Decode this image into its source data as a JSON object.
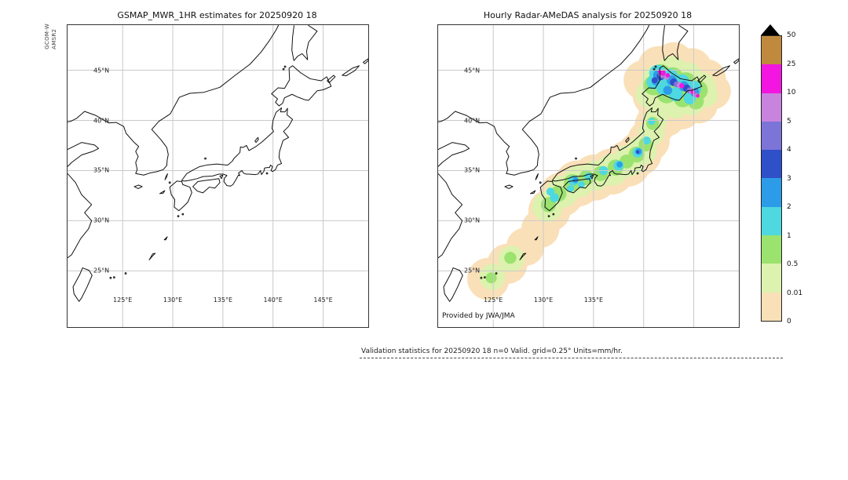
{
  "figure": {
    "left_panel": {
      "title": "GSMAP_MWR_1HR estimates for 20250920 18",
      "side_label_line1": "GCOM-W",
      "side_label_line2": "AMSR2",
      "lat_ticks": [
        {
          "label": "45°N",
          "v": 45
        },
        {
          "label": "40°N",
          "v": 40
        },
        {
          "label": "35°N",
          "v": 35
        },
        {
          "label": "30°N",
          "v": 30
        },
        {
          "label": "25°N",
          "v": 25
        }
      ],
      "lon_ticks": [
        {
          "label": "125°E",
          "v": 125
        },
        {
          "label": "130°E",
          "v": 130
        },
        {
          "label": "135°E",
          "v": 135
        },
        {
          "label": "140°E",
          "v": 140
        },
        {
          "label": "145°E",
          "v": 145
        }
      ]
    },
    "right_panel": {
      "title": "Hourly Radar-AMeDAS analysis for 20250920 18",
      "credit": "Provided by JWA/JMA",
      "lat_ticks": [
        {
          "label": "45°N",
          "v": 45
        },
        {
          "label": "40°N",
          "v": 40
        },
        {
          "label": "35°N",
          "v": 35
        },
        {
          "label": "30°N",
          "v": 30
        },
        {
          "label": "25°N",
          "v": 25
        }
      ],
      "lon_ticks": [
        {
          "label": "125°E",
          "v": 125
        },
        {
          "label": "130°E",
          "v": 130
        },
        {
          "label": "135°E",
          "v": 135
        }
      ]
    },
    "colorbar": {
      "boundary_labels_top_to_bottom": [
        "50",
        "25",
        "10",
        "5",
        "4",
        "3",
        "2",
        "1",
        "0.5",
        "0.01",
        "0"
      ],
      "segment_colors_top_to_bottom": [
        "#c08a3e",
        "#f216e0",
        "#c883dc",
        "#7d74d8",
        "#2f50c8",
        "#2d9ce8",
        "#4ed8e0",
        "#9be26f",
        "#dcf2ae",
        "#fae0b8"
      ],
      "overflow_triangle_color": "#000000",
      "units": "mm/hr"
    },
    "footer": "Validation statistics for 20250920 18  n=0 Valid. grid=0.25° Units=mm/hr."
  },
  "palette": {
    "0": "#fae0b8",
    "0.01": "#dcf2ae",
    "0.5": "#9be26f",
    "1": "#4ed8e0",
    "2": "#2d9ce8",
    "3": "#2f50c8",
    "4": "#7d74d8",
    "5": "#c883dc",
    "10": "#f216e0",
    "25": "#c08a3e"
  },
  "grid": {
    "lon_values": [
      125,
      130,
      135,
      140,
      145
    ],
    "lat_values": [
      25,
      30,
      35,
      40,
      45
    ]
  },
  "chart_data": [
    {
      "type": "heatmap",
      "panel": "left",
      "title": "GSMAP_MWR_1HR estimates for 20250920 18",
      "x_axis": {
        "label": "longitude",
        "range_deg_east": [
          119.5,
          149.5
        ],
        "ticks": [
          "125°E",
          "130°E",
          "135°E",
          "140°E",
          "145°E"
        ]
      },
      "y_axis": {
        "label": "latitude",
        "range_deg_north": [
          19.4,
          49.5
        ],
        "ticks": [
          "25°N",
          "30°N",
          "35°N",
          "40°N",
          "45°N"
        ]
      },
      "units": "mm/hr",
      "grid": "on",
      "cells": []
    },
    {
      "type": "heatmap",
      "panel": "right",
      "title": "Hourly Radar-AMeDAS analysis for 20250920 18",
      "x_axis": {
        "label": "longitude",
        "range_deg_east": [
          119.5,
          149.5
        ],
        "ticks": [
          "125°E",
          "130°E",
          "135°E"
        ]
      },
      "y_axis": {
        "label": "latitude",
        "range_deg_north": [
          19.4,
          49.5
        ],
        "ticks": [
          "25°N",
          "30°N",
          "35°N",
          "40°N",
          "45°N"
        ]
      },
      "units": "mm/hr",
      "grid": "on",
      "cells_format": [
        "lon_deg_e",
        "lat_deg_n",
        "radius_deg",
        "rain_level_mm_per_hr"
      ],
      "cells": [
        [
          124.5,
          24.2,
          2.1,
          "0"
        ],
        [
          126.4,
          25.7,
          2.0,
          "0"
        ],
        [
          128.2,
          27.4,
          1.9,
          "0"
        ],
        [
          129.7,
          29.2,
          1.9,
          "0"
        ],
        [
          130.6,
          31.0,
          2.1,
          "0"
        ],
        [
          131.8,
          32.6,
          2.2,
          "0"
        ],
        [
          133.4,
          33.7,
          2.3,
          "0"
        ],
        [
          135.1,
          34.3,
          2.3,
          "0"
        ],
        [
          136.8,
          34.9,
          2.3,
          "0"
        ],
        [
          138.4,
          35.7,
          2.3,
          "0"
        ],
        [
          139.6,
          36.7,
          2.2,
          "0"
        ],
        [
          140.5,
          38.0,
          2.1,
          "0"
        ],
        [
          141.1,
          39.5,
          2.0,
          "0"
        ],
        [
          141.5,
          41.0,
          2.0,
          "0"
        ],
        [
          141.0,
          42.5,
          2.1,
          "0"
        ],
        [
          140.0,
          44.0,
          2.0,
          "0"
        ],
        [
          141.5,
          45.3,
          2.1,
          "0"
        ],
        [
          143.0,
          45.8,
          2.0,
          "0"
        ],
        [
          144.8,
          45.2,
          2.0,
          "0"
        ],
        [
          146.3,
          44.2,
          1.9,
          "0"
        ],
        [
          146.9,
          42.9,
          1.8,
          "0"
        ],
        [
          145.5,
          41.6,
          1.9,
          "0"
        ],
        [
          143.8,
          41.0,
          1.9,
          "0"
        ],
        [
          142.3,
          40.2,
          1.8,
          "0"
        ],
        [
          124.9,
          24.4,
          1.3,
          "0.01"
        ],
        [
          126.8,
          26.2,
          1.3,
          "0.01"
        ],
        [
          130.4,
          31.4,
          1.5,
          "0.01"
        ],
        [
          131.9,
          32.9,
          1.6,
          "0.01"
        ],
        [
          133.5,
          33.9,
          1.6,
          "0.01"
        ],
        [
          135.2,
          34.5,
          1.5,
          "0.01"
        ],
        [
          136.9,
          35.1,
          1.6,
          "0.01"
        ],
        [
          138.6,
          36.0,
          1.6,
          "0.01"
        ],
        [
          139.8,
          37.0,
          1.5,
          "0.01"
        ],
        [
          140.8,
          38.8,
          1.3,
          "0.01"
        ],
        [
          141.2,
          40.2,
          1.2,
          "0.01"
        ],
        [
          140.6,
          42.6,
          1.4,
          "0.01"
        ],
        [
          141.3,
          44.0,
          1.5,
          "0.01"
        ],
        [
          142.8,
          44.8,
          1.6,
          "0.01"
        ],
        [
          144.4,
          44.3,
          1.5,
          "0.01"
        ],
        [
          145.8,
          43.4,
          1.4,
          "0.01"
        ],
        [
          146.2,
          42.5,
          1.2,
          "0.01"
        ],
        [
          144.8,
          41.8,
          1.3,
          "0.01"
        ],
        [
          143.2,
          41.5,
          1.3,
          "0.01"
        ],
        [
          141.9,
          42.8,
          1.5,
          "0.01"
        ],
        [
          143.5,
          43.3,
          1.5,
          "0.01"
        ],
        [
          130.5,
          31.6,
          0.75,
          "0.5"
        ],
        [
          131.5,
          32.7,
          0.8,
          "0.5"
        ],
        [
          132.9,
          33.8,
          0.85,
          "0.5"
        ],
        [
          134.3,
          34.3,
          0.75,
          "0.5"
        ],
        [
          135.7,
          34.7,
          0.75,
          "0.5"
        ],
        [
          137.2,
          35.3,
          0.8,
          "0.5"
        ],
        [
          138.3,
          35.9,
          0.7,
          "0.5"
        ],
        [
          139.3,
          36.6,
          0.8,
          "0.5"
        ],
        [
          140.2,
          37.6,
          0.7,
          "0.5"
        ],
        [
          140.9,
          39.7,
          0.65,
          "0.5"
        ],
        [
          126.7,
          26.3,
          0.6,
          "0.5"
        ],
        [
          124.8,
          24.3,
          0.55,
          "0.5"
        ],
        [
          141.7,
          44.5,
          1.1,
          "0.5"
        ],
        [
          142.9,
          44.2,
          1.1,
          "0.5"
        ],
        [
          144.2,
          43.7,
          1.1,
          "0.5"
        ],
        [
          145.4,
          43.0,
          1.0,
          "0.5"
        ],
        [
          141.0,
          43.5,
          1.0,
          "0.5"
        ],
        [
          142.3,
          42.7,
          1.0,
          "0.5"
        ],
        [
          143.9,
          42.2,
          0.9,
          "0.5"
        ],
        [
          145.2,
          41.9,
          0.8,
          "0.5"
        ],
        [
          131.1,
          32.3,
          0.45,
          "1"
        ],
        [
          133.0,
          34.0,
          0.5,
          "1"
        ],
        [
          134.5,
          34.4,
          0.4,
          "1"
        ],
        [
          136.0,
          35.0,
          0.45,
          "1"
        ],
        [
          137.5,
          35.5,
          0.5,
          "1"
        ],
        [
          139.4,
          36.8,
          0.5,
          "1"
        ],
        [
          140.3,
          38.0,
          0.4,
          "1"
        ],
        [
          130.7,
          32.9,
          0.4,
          "1"
        ],
        [
          140.8,
          39.9,
          0.35,
          "1"
        ],
        [
          132.7,
          33.2,
          0.35,
          "1"
        ],
        [
          133.8,
          33.6,
          0.35,
          "1"
        ],
        [
          141.4,
          44.7,
          0.85,
          "1"
        ],
        [
          142.6,
          44.3,
          0.85,
          "1"
        ],
        [
          143.8,
          43.8,
          0.8,
          "1"
        ],
        [
          145.0,
          43.2,
          0.75,
          "1"
        ],
        [
          141.0,
          43.8,
          0.7,
          "1"
        ],
        [
          142.0,
          43.2,
          0.7,
          "1"
        ],
        [
          143.2,
          42.6,
          0.7,
          "1"
        ],
        [
          144.6,
          42.2,
          0.6,
          "1"
        ],
        [
          137.6,
          35.6,
          0.3,
          "2"
        ],
        [
          139.5,
          36.9,
          0.32,
          "2"
        ],
        [
          133.2,
          34.05,
          0.3,
          "2"
        ],
        [
          141.5,
          44.5,
          0.55,
          "2"
        ],
        [
          142.8,
          44.0,
          0.5,
          "2"
        ],
        [
          144.0,
          43.4,
          0.5,
          "2"
        ],
        [
          145.1,
          42.8,
          0.45,
          "2"
        ],
        [
          141.2,
          43.9,
          0.4,
          "2"
        ],
        [
          142.4,
          43.0,
          0.45,
          "2"
        ],
        [
          141.7,
          44.4,
          0.4,
          "3"
        ],
        [
          143.0,
          43.8,
          0.38,
          "3"
        ],
        [
          144.3,
          43.2,
          0.38,
          "3"
        ],
        [
          139.4,
          36.85,
          0.18,
          "3"
        ],
        [
          141.1,
          44.0,
          0.3,
          "3"
        ],
        [
          141.9,
          44.45,
          0.3,
          "4"
        ],
        [
          143.3,
          43.6,
          0.3,
          "4"
        ],
        [
          144.6,
          43.0,
          0.3,
          "4"
        ],
        [
          145.1,
          42.6,
          0.25,
          "4"
        ],
        [
          141.8,
          44.6,
          0.3,
          "5"
        ],
        [
          142.3,
          44.3,
          0.25,
          "5"
        ],
        [
          143.6,
          43.5,
          0.3,
          "5"
        ],
        [
          144.8,
          42.9,
          0.28,
          "5"
        ],
        [
          145.3,
          42.5,
          0.22,
          "5"
        ],
        [
          141.9,
          44.75,
          0.3,
          "10"
        ],
        [
          142.4,
          44.5,
          0.22,
          "10"
        ],
        [
          143.8,
          43.45,
          0.25,
          "10"
        ],
        [
          144.9,
          42.85,
          0.22,
          "10"
        ],
        [
          145.4,
          42.45,
          0.18,
          "10"
        ],
        [
          141.6,
          44.9,
          0.2,
          "10"
        ]
      ],
      "colorbar_levels": [
        "0",
        "0.01",
        "0.5",
        "1",
        "2",
        "3",
        "4",
        "5",
        "10",
        "25",
        "50"
      ]
    }
  ],
  "geo": {
    "coast_paths": [
      "M140.85,-41.25 L140.3,-40.8 L140.0,-40.0 L139.9,-39.2 L140.05,-38.9 L139.4,-38.3 L138.9,-37.85 L138.3,-37.4 L137.6,-37.0 L137.35,-37.5 L137.0,-37.3 L136.75,-37.35 L136.7,-36.8 L136.1,-36.2 L135.95,-35.95 L135.5,-35.55 L135.3,-35.55 L134.4,-35.65 L133.4,-35.55 L132.7,-35.4 L132.1,-35.1 L131.4,-34.7 L130.88,-34.0 L131.2,-33.95 L131.8,-34.05 L132.45,-34.2 L133.0,-34.4 L133.95,-34.45 L134.6,-34.65 L135.05,-34.65 L135.4,-34.5 L135.15,-34.25 L135.1,-33.9 L135.4,-33.5 L135.75,-33.45 L136.0,-33.6 L136.3,-34.1 L136.55,-34.55 L136.7,-34.5 L136.55,-34.75 L136.9,-35.0 L137.05,-34.75 L137.3,-34.65 L137.6,-34.65 L138.2,-34.6 L138.5,-34.65 L138.75,-35.0 L138.85,-34.6 L139.1,-34.95 L139.15,-35.25 L139.45,-35.3 L139.65,-35.3 L139.75,-35.55 L139.8,-35.5 L139.95,-35.4 L139.8,-35.0 L139.95,-34.9 L140.25,-35.1 L140.45,-35.55 L140.85,-35.7 L140.6,-36.3 L140.65,-36.9 L141.0,-38.0 L141.55,-38.3 L141.05,-38.9 L141.55,-39.4 L141.95,-40.1 L141.4,-40.55 L141.45,-41.2 L141.2,-40.85 L140.75,-40.85 Z",
      "M139.85,-42.65 L140.5,-43.25 L141.15,-43.2 L141.65,-44.05 L141.6,-45.2 L141.95,-45.45 L142.75,-44.75 L143.7,-44.15 L144.8,-43.95 L145.35,-44.35 L145.8,-43.4 L145.0,-43.05 L144.4,-42.95 L143.55,-42.0 L143.2,-42.05 L142.4,-42.35 L141.9,-42.6 L141.15,-42.25 L140.95,-41.7 L140.6,-41.45 L140.25,-41.8 L140.45,-42.15 Z",
      "M130.4,-33.95 L129.7,-33.35 L129.85,-32.6 L130.2,-32.1 L130.15,-31.35 L130.6,-31.0 L131.05,-31.4 L131.5,-31.85 L131.9,-32.8 L131.7,-33.35 L131.0,-33.6 L130.9,-33.9 Z",
      "M132.0,-33.4 L132.45,-32.95 L133.0,-32.78 L133.65,-33.35 L134.2,-33.25 L134.7,-33.8 L134.6,-34.2 L133.95,-34.1 L133.1,-34.0 L132.5,-33.9 Z",
      "M124.35,-39.8 L125.1,-39.4 L125.35,-38.7 L126.15,-37.8 L126.6,-37.4 L126.3,-36.9 L126.55,-36.4 L126.3,-35.8 L126.45,-35.1 L126.3,-34.7 L127.1,-34.55 L127.7,-34.75 L128.45,-34.9 L129.05,-35.1 L129.4,-35.5 L129.45,-36.1 L129.55,-36.6 L129.4,-37.3 L128.8,-38.1 L128.35,-38.6 L127.9,-39.1 L128.6,-39.9 L129.75,-40.65 L130.65,-42.3 L131.7,-42.7 L133.1,-42.8 L134.7,-43.3 L136.1,-44.4 L137.7,-45.6 L138.8,-46.8 L139.6,-47.9 L140.3,-49.0 L140.55,-49.5",
      "M124.35,-39.8 L123.6,-39.75 L122.3,-40.5 L121.2,-40.9 L120.4,-40.2 L119.8,-39.9 L119.5,-39.85",
      "M119.5,-37.1 L120.9,-37.8 L122.2,-37.55 L122.6,-37.2 L122.0,-36.9 L120.9,-36.55 L119.9,-35.8 L119.5,-35.4",
      "M119.5,-34.7 L120.3,-33.8 L120.9,-32.6 L121.9,-31.6 L121.2,-30.8 L121.9,-30.0 L121.6,-29.2 L120.8,-28.2 L120.3,-27.3 L119.9,-26.6 L119.5,-26.3",
      "M121.0,-25.3 L121.65,-25.05 L121.95,-24.55 L121.45,-23.4 L120.9,-22.3 L120.65,-21.95 L120.15,-22.7 L120.05,-23.4 L120.75,-24.7 Z",
      "M142.08,-45.95 L141.88,-47.0 L141.95,-48.3 L142.1,-49.48 M143.5,-49.48 L144.4,-48.9 L143.55,-47.8 L143.35,-46.9 L143.45,-46.05 L142.9,-46.65 L142.45,-46.4 L142.08,-45.95",
      "M145.4,-43.95 L146.05,-44.5 L146.2,-44.35 L145.6,-43.75 Z",
      "M146.9,-44.5 L147.9,-45.2 L148.6,-45.45 L148.15,-44.95 L147.3,-44.45 Z",
      "M149.0,-45.8 L149.5,-46.15 L149.5,-45.95 L149.15,-45.65 Z",
      "M126.15,-33.4 L126.6,-33.55 L126.95,-33.4 L126.55,-33.2 Z",
      "M129.22,-34.08 L129.32,-34.4 L129.48,-34.68 L129.38,-34.35 Z",
      "M128.7,-32.7 L129.2,-33.0 L129.05,-32.75 Z",
      "M129.15,-28.1 L129.45,-28.4 L129.3,-28.1 Z",
      "M127.65,-26.1 L127.95,-26.45 L128.25,-26.75 L128.0,-26.7 L127.8,-26.35 Z",
      "M138.2,-37.95 L138.5,-38.3 L138.55,-38.1 L138.3,-37.8 Z",
      "M134.85,-34.2 L135.0,-34.55 L134.7,-34.45 Z"
    ],
    "island_dots": [
      [
        129.7,
        33.8
      ],
      [
        133.25,
        36.2
      ],
      [
        130.55,
        30.45
      ],
      [
        131.0,
        30.65
      ],
      [
        125.3,
        24.75
      ],
      [
        124.15,
        24.35
      ],
      [
        123.8,
        24.3
      ],
      [
        139.4,
        34.72
      ],
      [
        141.2,
        45.35
      ],
      [
        141.05,
        45.1
      ]
    ]
  }
}
